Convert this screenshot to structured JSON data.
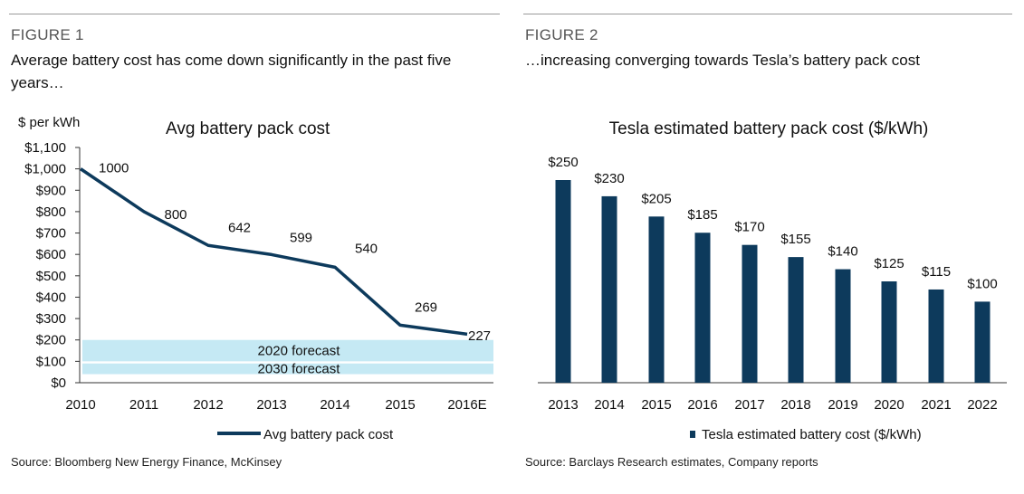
{
  "figure1": {
    "label": "FIGURE 1",
    "title": "Average battery cost has come down significantly in the past five years…",
    "source": "Source: Bloomberg New Energy Finance, McKinsey"
  },
  "figure2": {
    "label": "FIGURE 2",
    "title": "…increasing converging towards Tesla’s battery pack cost",
    "source": "Source: Barclays Research estimates, Company reports"
  },
  "chart_data": [
    {
      "type": "line",
      "title": "Avg battery pack cost",
      "ylabel": "$ per kWh",
      "xlabel": "",
      "categories": [
        "2010",
        "2011",
        "2012",
        "2013",
        "2014",
        "2015",
        "2016E"
      ],
      "series": [
        {
          "name": "Avg battery pack cost",
          "values": [
            1000,
            800,
            642,
            599,
            540,
            269,
            227
          ],
          "color": "#0d3a5c"
        }
      ],
      "data_labels": [
        "1000",
        "800",
        "642",
        "599",
        "540",
        "269",
        "227"
      ],
      "yticks": [
        0,
        100,
        200,
        300,
        400,
        500,
        600,
        700,
        800,
        900,
        1000,
        1100
      ],
      "ytick_labels": [
        "$0",
        "$100",
        "$200",
        "$300",
        "$400",
        "$500",
        "$600",
        "$700",
        "$800",
        "$900",
        "$1,000",
        "$1,100"
      ],
      "ylim": [
        0,
        1100
      ],
      "bands": [
        {
          "label": "2020 forecast",
          "range": [
            100,
            200
          ],
          "color": "#c5e9f4"
        },
        {
          "label": "2030 forecast",
          "range": [
            40,
            90
          ],
          "color": "#c5e9f4"
        }
      ],
      "legend": {
        "position": "bottom",
        "entries": [
          "Avg battery pack cost"
        ]
      },
      "grid": false
    },
    {
      "type": "bar",
      "title": "Tesla estimated battery pack cost ($/kWh)",
      "xlabel": "",
      "ylabel": "",
      "categories": [
        "2013",
        "2014",
        "2015",
        "2016",
        "2017",
        "2018",
        "2019",
        "2020",
        "2021",
        "2022"
      ],
      "series": [
        {
          "name": "Tesla estimated battery cost ($/kWh)",
          "values": [
            250,
            230,
            205,
            185,
            170,
            155,
            140,
            125,
            115,
            100
          ],
          "color": "#0d3a5c"
        }
      ],
      "data_labels": [
        "$250",
        "$230",
        "$205",
        "$185",
        "$170",
        "$155",
        "$140",
        "$125",
        "$115",
        "$100"
      ],
      "ylim": [
        0,
        300
      ],
      "legend": {
        "position": "bottom",
        "entries": [
          "Tesla estimated battery cost ($/kWh)"
        ]
      },
      "grid": false
    }
  ]
}
